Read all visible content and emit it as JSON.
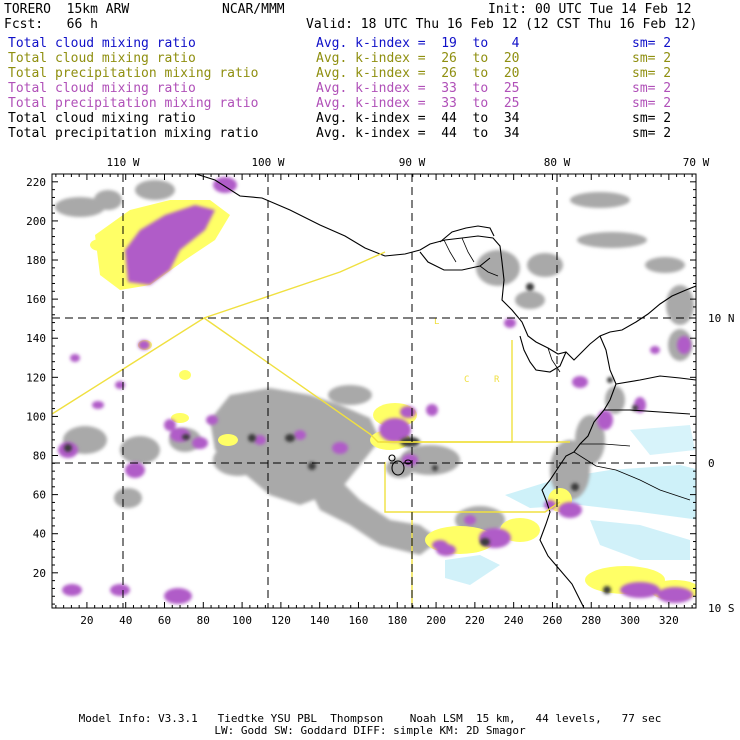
{
  "header": {
    "model": "TORERO  15km ARW",
    "org": "NCAR/MMM",
    "init": "Init: 00 UTC Tue 14 Feb 12",
    "fcst": "Fcst:   66 h",
    "valid": "Valid: 18 UTC Thu 16 Feb 12 (12 CST Thu 16 Feb 12)"
  },
  "legend": [
    {
      "field": "Total cloud mixing ratio",
      "index": "Avg. k-index =  19  to   4",
      "sm": "sm= 2",
      "color": "#1010c8"
    },
    {
      "field": "Total cloud mixing ratio",
      "index": "Avg. k-index =  26  to  20",
      "sm": "sm= 2",
      "color": "#8f8f10"
    },
    {
      "field": "Total precipitation mixing ratio",
      "index": "Avg. k-index =  26  to  20",
      "sm": "sm= 2",
      "color": "#8f8f10"
    },
    {
      "field": "Total cloud mixing ratio",
      "index": "Avg. k-index =  33  to  25",
      "sm": "sm= 2",
      "color": "#b050b8"
    },
    {
      "field": "Total precipitation mixing ratio",
      "index": "Avg. k-index =  33  to  25",
      "sm": "sm= 2",
      "color": "#b050b8"
    },
    {
      "field": "Total cloud mixing ratio",
      "index": "Avg. k-index =  44  to  34",
      "sm": "sm= 2",
      "color": "#000000"
    },
    {
      "field": "Total precipitation mixing ratio",
      "index": "Avg. k-index =  44  to  34",
      "sm": "sm= 2",
      "color": "#000000"
    }
  ],
  "map": {
    "lon_labels": [
      "110 W",
      "100 W",
      "90 W",
      "80 W",
      "70 W"
    ],
    "lat_labels": [
      "10 N",
      "0",
      "10 S"
    ],
    "x_ticks": [
      "20",
      "40",
      "60",
      "80",
      "100",
      "120",
      "140",
      "160",
      "180",
      "200",
      "220",
      "240",
      "260",
      "280",
      "300",
      "320"
    ],
    "y_ticks": [
      "20",
      "40",
      "60",
      "80",
      "100",
      "120",
      "140",
      "160",
      "180",
      "200",
      "220"
    ],
    "x_range": [
      2,
      334
    ],
    "y_range": [
      2,
      224
    ],
    "colors": {
      "cloud_gray": "#a9a9a9",
      "dark_core": "#3a3a3a",
      "purple": "#b05cc8",
      "yellow": "#ffff66",
      "light_blue": "#c6eef8",
      "boundary_yellow": "#f0e040",
      "coast": "#000000"
    }
  },
  "footer": {
    "line1": "Model Info: V3.3.1   Tiedtke YSU PBL  Thompson    Noah LSM  15 km,   44 levels,   77 sec",
    "line2": "LW: Godd SW: Goddard DIFF: simple KM: 2D Smagor"
  }
}
